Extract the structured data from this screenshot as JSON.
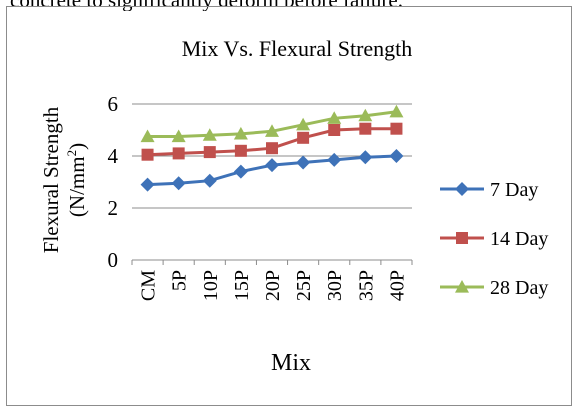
{
  "top_text": "concrete to significantly deform before failure.",
  "chart_data": {
    "type": "line",
    "title": "Mix Vs. Flexural Strength",
    "xlabel": "Mix",
    "ylabel_line1": "Flexural Strength",
    "ylabel_line2_prefix": "(N/mm",
    "ylabel_line2_sup": "2",
    "ylabel_line2_suffix": ")",
    "categories": [
      "CM",
      "5P",
      "10P",
      "15P",
      "20P",
      "25P",
      "30P",
      "35P",
      "40P"
    ],
    "ylim": [
      0,
      6
    ],
    "yticks": [
      "0",
      "2",
      "4",
      "6"
    ],
    "grid": true,
    "legend_position": "right",
    "series": [
      {
        "name": "7 Day",
        "color": "#3e72b8",
        "marker": "diamond",
        "values": [
          2.9,
          2.95,
          3.05,
          3.4,
          3.65,
          3.75,
          3.85,
          3.95,
          4.0
        ]
      },
      {
        "name": "14 Day",
        "color": "#c0504d",
        "marker": "square",
        "values": [
          4.05,
          4.1,
          4.15,
          4.2,
          4.3,
          4.7,
          5.0,
          5.05,
          5.05
        ]
      },
      {
        "name": "28 Day",
        "color": "#9bbb59",
        "marker": "triangle",
        "values": [
          4.75,
          4.75,
          4.8,
          4.85,
          4.95,
          5.2,
          5.45,
          5.55,
          5.7
        ]
      }
    ]
  }
}
